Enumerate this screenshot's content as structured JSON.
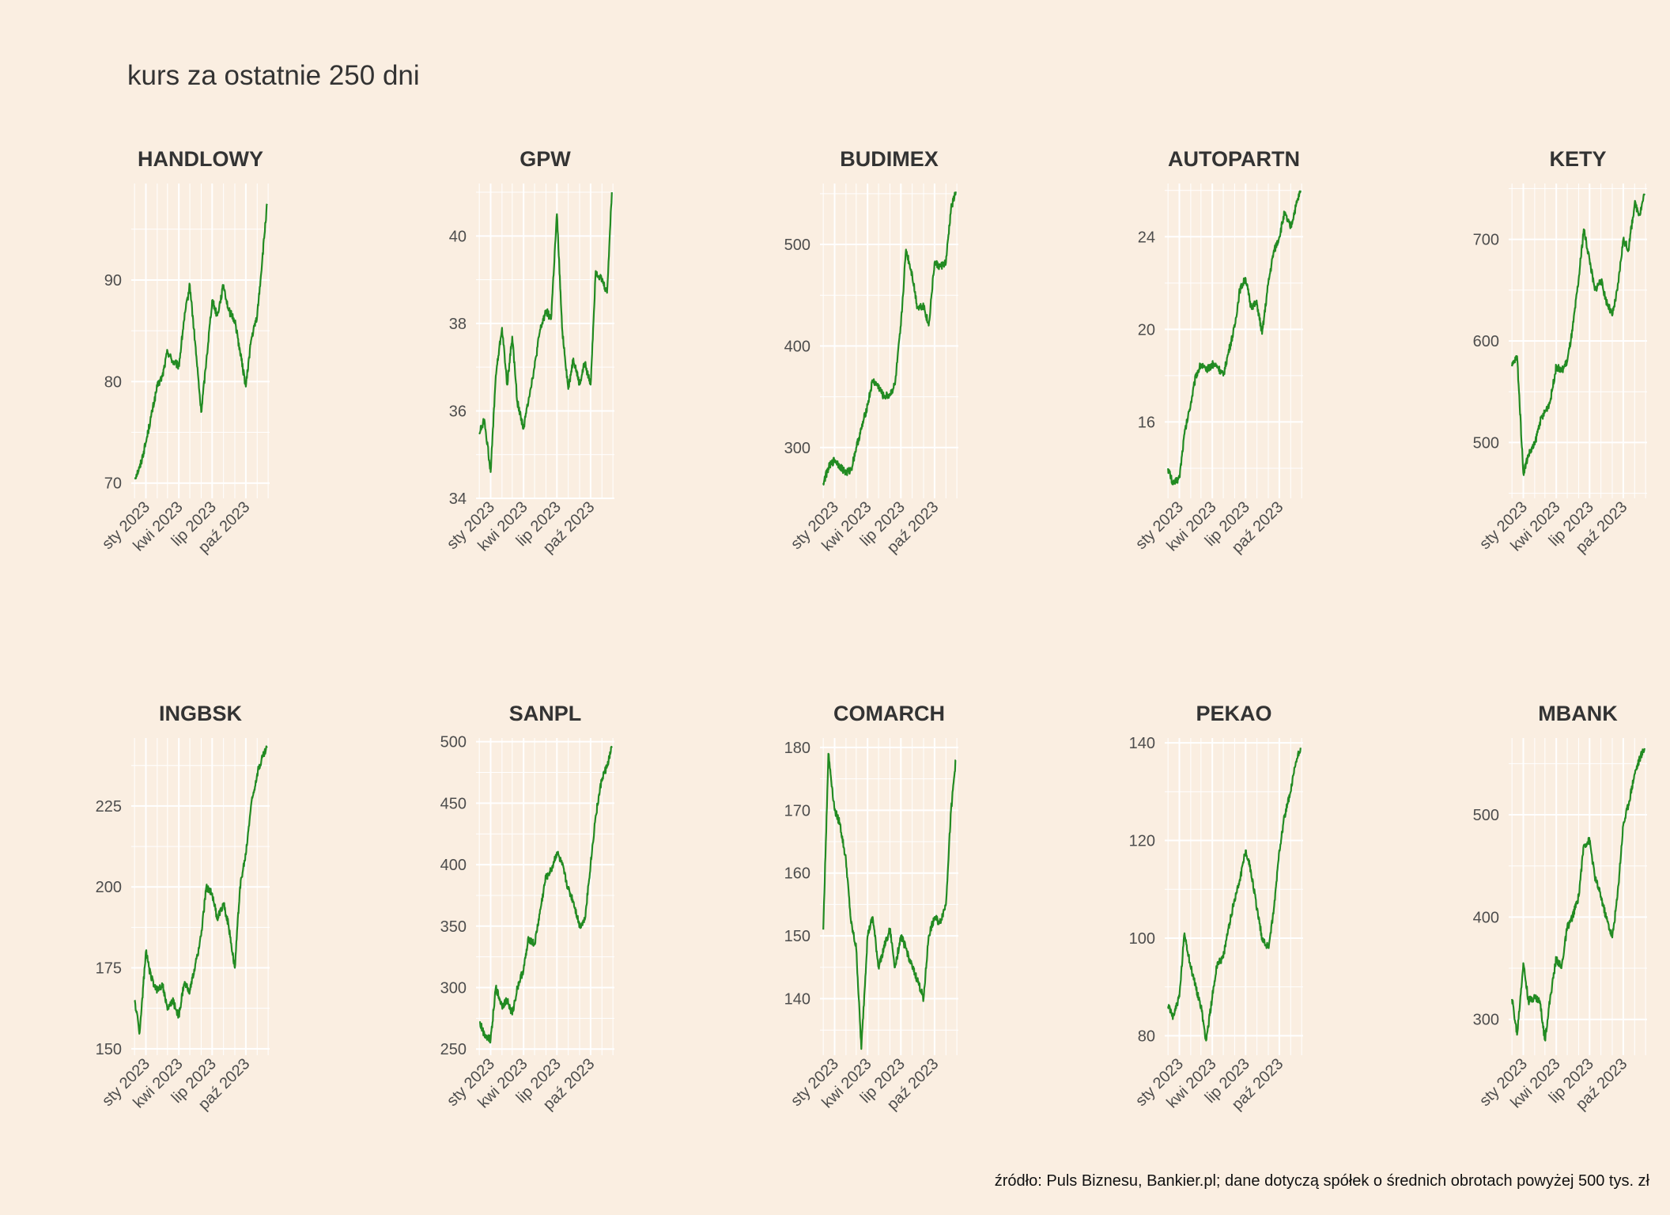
{
  "title": "kurs za ostatnie 250 dni",
  "caption": "źródło: Puls Biznesu, Bankier.pl; dane dotyczą spółek o średnich obrotach powyżej 500 tys. zł",
  "colors": {
    "background": "#faeee1",
    "grid": "#ffffff",
    "line": "#228b22",
    "text": "#333333"
  },
  "chart_data": [
    {
      "type": "line",
      "title": "HANDLOWY",
      "x_ticks": [
        "sty 2023",
        "kwi 2023",
        "lip 2023",
        "paź 2023"
      ],
      "yticks": [
        70,
        80,
        90
      ],
      "ylim": [
        68.5,
        99.5
      ],
      "x": [
        "2022-12-01",
        "2022-12-15",
        "2023-01-01",
        "2023-01-15",
        "2023-02-01",
        "2023-02-15",
        "2023-03-01",
        "2023-03-15",
        "2023-04-01",
        "2023-04-15",
        "2023-05-01",
        "2023-05-15",
        "2023-06-01",
        "2023-06-15",
        "2023-07-01",
        "2023-07-15",
        "2023-08-01",
        "2023-08-15",
        "2023-09-01",
        "2023-09-15",
        "2023-10-01",
        "2023-10-15",
        "2023-11-01",
        "2023-11-15",
        "2023-11-28"
      ],
      "values": [
        70.5,
        71.5,
        74,
        76.5,
        79.5,
        80.5,
        83,
        82,
        81.5,
        86,
        89.5,
        84,
        77,
        82,
        88,
        86.5,
        89.5,
        87,
        86,
        83,
        79.5,
        84,
        86.5,
        92,
        97.5
      ]
    },
    {
      "type": "line",
      "title": "GPW",
      "x_ticks": [
        "sty 2023",
        "kwi 2023",
        "lip 2023",
        "paź 2023"
      ],
      "yticks": [
        34,
        36,
        38,
        40
      ],
      "ylim": [
        34,
        41.2
      ],
      "x": [
        "2022-12-01",
        "2022-12-15",
        "2023-01-01",
        "2023-01-15",
        "2023-02-01",
        "2023-02-15",
        "2023-03-01",
        "2023-03-15",
        "2023-04-01",
        "2023-04-15",
        "2023-05-01",
        "2023-05-15",
        "2023-06-01",
        "2023-06-15",
        "2023-07-01",
        "2023-07-15",
        "2023-08-01",
        "2023-08-15",
        "2023-09-01",
        "2023-09-15",
        "2023-10-01",
        "2023-10-15",
        "2023-11-01",
        "2023-11-15",
        "2023-11-28"
      ],
      "values": [
        35.5,
        35.8,
        34.6,
        36.8,
        37.9,
        36.6,
        37.7,
        36.2,
        35.6,
        36.3,
        37,
        37.8,
        38.3,
        38.1,
        40.5,
        37.9,
        36.5,
        37.2,
        36.6,
        37.1,
        36.6,
        39.2,
        39,
        38.7,
        41
      ]
    },
    {
      "type": "line",
      "title": "BUDIMEX",
      "x_ticks": [
        "sty 2023",
        "kwi 2023",
        "lip 2023",
        "paź 2023"
      ],
      "yticks": [
        300,
        400,
        500
      ],
      "ylim": [
        250,
        560
      ],
      "x": [
        "2022-12-01",
        "2022-12-15",
        "2023-01-01",
        "2023-01-15",
        "2023-02-01",
        "2023-02-15",
        "2023-03-01",
        "2023-03-15",
        "2023-04-01",
        "2023-04-15",
        "2023-05-01",
        "2023-05-15",
        "2023-06-01",
        "2023-06-15",
        "2023-07-01",
        "2023-07-15",
        "2023-08-01",
        "2023-08-15",
        "2023-09-01",
        "2023-09-15",
        "2023-10-01",
        "2023-10-15",
        "2023-11-01",
        "2023-11-15",
        "2023-11-28"
      ],
      "values": [
        265,
        280,
        288,
        282,
        275,
        278,
        300,
        318,
        342,
        366,
        360,
        350,
        352,
        362,
        420,
        495,
        470,
        438,
        440,
        420,
        482,
        478,
        482,
        535,
        552
      ]
    },
    {
      "type": "line",
      "title": "AUTOPARTN",
      "x_ticks": [
        "sty 2023",
        "kwi 2023",
        "lip 2023",
        "paź 2023"
      ],
      "yticks": [
        16,
        20,
        24
      ],
      "ylim": [
        12.7,
        26.3
      ],
      "x": [
        "2022-12-01",
        "2022-12-15",
        "2023-01-01",
        "2023-01-15",
        "2023-02-01",
        "2023-02-15",
        "2023-03-01",
        "2023-03-15",
        "2023-04-01",
        "2023-04-15",
        "2023-05-01",
        "2023-05-15",
        "2023-06-01",
        "2023-06-15",
        "2023-07-01",
        "2023-07-15",
        "2023-08-01",
        "2023-08-15",
        "2023-09-01",
        "2023-09-15",
        "2023-10-01",
        "2023-10-15",
        "2023-11-01",
        "2023-11-15",
        "2023-11-28"
      ],
      "values": [
        14,
        13.3,
        13.6,
        15.5,
        16.8,
        18,
        18.5,
        18.2,
        18.5,
        18.4,
        18,
        19,
        20.1,
        21.7,
        22.2,
        21,
        21.1,
        19.8,
        22,
        23.3,
        24,
        25,
        24.4,
        25.3,
        26
      ]
    },
    {
      "type": "line",
      "title": "KETY",
      "x_ticks": [
        "sty 2023",
        "kwi 2023",
        "lip 2023",
        "paź 2023"
      ],
      "yticks": [
        500,
        600,
        700
      ],
      "ylim": [
        445,
        755
      ],
      "x": [
        "2022-12-01",
        "2022-12-15",
        "2023-01-01",
        "2023-01-15",
        "2023-02-01",
        "2023-02-15",
        "2023-03-01",
        "2023-03-15",
        "2023-04-01",
        "2023-04-15",
        "2023-05-01",
        "2023-05-15",
        "2023-06-01",
        "2023-06-15",
        "2023-07-01",
        "2023-07-15",
        "2023-08-01",
        "2023-08-15",
        "2023-09-01",
        "2023-09-15",
        "2023-10-01",
        "2023-10-15",
        "2023-11-01",
        "2023-11-15",
        "2023-11-28"
      ],
      "values": [
        575,
        585,
        470,
        488,
        498,
        520,
        530,
        540,
        575,
        570,
        580,
        610,
        660,
        710,
        680,
        650,
        660,
        640,
        625,
        650,
        700,
        690,
        735,
        725,
        745
      ]
    },
    {
      "type": "line",
      "title": "INGBSK",
      "x_ticks": [
        "sty 2023",
        "kwi 2023",
        "lip 2023",
        "paź 2023"
      ],
      "yticks": [
        150,
        175,
        200,
        225
      ],
      "ylim": [
        148,
        246
      ],
      "x": [
        "2022-12-01",
        "2022-12-15",
        "2023-01-01",
        "2023-01-15",
        "2023-02-01",
        "2023-02-15",
        "2023-03-01",
        "2023-03-15",
        "2023-04-01",
        "2023-04-15",
        "2023-05-01",
        "2023-05-15",
        "2023-06-01",
        "2023-06-15",
        "2023-07-01",
        "2023-07-15",
        "2023-08-01",
        "2023-08-15",
        "2023-09-01",
        "2023-09-15",
        "2023-10-01",
        "2023-10-15",
        "2023-11-01",
        "2023-11-15",
        "2023-11-28"
      ],
      "values": [
        165,
        155,
        180,
        172,
        168,
        170,
        162,
        165,
        160,
        170,
        168,
        175,
        185,
        200,
        198,
        190,
        195,
        188,
        175,
        200,
        210,
        225,
        235,
        240,
        243
      ]
    },
    {
      "type": "line",
      "title": "SANPL",
      "x_ticks": [
        "sty 2023",
        "kwi 2023",
        "lip 2023",
        "paź 2023"
      ],
      "yticks": [
        250,
        300,
        350,
        400,
        450,
        500
      ],
      "ylim": [
        245,
        503
      ],
      "x": [
        "2022-12-01",
        "2022-12-15",
        "2023-01-01",
        "2023-01-15",
        "2023-02-01",
        "2023-02-15",
        "2023-03-01",
        "2023-03-15",
        "2023-04-01",
        "2023-04-15",
        "2023-05-01",
        "2023-05-15",
        "2023-06-01",
        "2023-06-15",
        "2023-07-01",
        "2023-07-15",
        "2023-08-01",
        "2023-08-15",
        "2023-09-01",
        "2023-09-15",
        "2023-10-01",
        "2023-10-15",
        "2023-11-01",
        "2023-11-15",
        "2023-11-28"
      ],
      "values": [
        272,
        262,
        258,
        300,
        285,
        290,
        278,
        300,
        315,
        340,
        335,
        360,
        390,
        395,
        410,
        400,
        380,
        370,
        350,
        355,
        400,
        440,
        470,
        480,
        495
      ]
    },
    {
      "type": "line",
      "title": "COMARCH",
      "x_ticks": [
        "sty 2023",
        "kwi 2023",
        "lip 2023",
        "paź 2023"
      ],
      "yticks": [
        140,
        150,
        160,
        170,
        180
      ],
      "ylim": [
        131,
        181.5
      ],
      "x": [
        "2022-12-01",
        "2022-12-15",
        "2023-01-01",
        "2023-01-15",
        "2023-02-01",
        "2023-02-15",
        "2023-03-01",
        "2023-03-15",
        "2023-04-01",
        "2023-04-15",
        "2023-05-01",
        "2023-05-15",
        "2023-06-01",
        "2023-06-15",
        "2023-07-01",
        "2023-07-15",
        "2023-08-01",
        "2023-08-15",
        "2023-09-01",
        "2023-09-15",
        "2023-10-01",
        "2023-10-15",
        "2023-11-01",
        "2023-11-15",
        "2023-11-28"
      ],
      "values": [
        151,
        179,
        170,
        168,
        162,
        152,
        148,
        132,
        150,
        153,
        145,
        148,
        151,
        145,
        150,
        148,
        145,
        143,
        140,
        150,
        153,
        152,
        155,
        170,
        178
      ]
    },
    {
      "type": "line",
      "title": "PEKAO",
      "x_ticks": [
        "sty 2023",
        "kwi 2023",
        "lip 2023",
        "paź 2023"
      ],
      "yticks": [
        80,
        100,
        120,
        140
      ],
      "ylim": [
        76,
        141
      ],
      "x": [
        "2022-12-01",
        "2022-12-15",
        "2023-01-01",
        "2023-01-15",
        "2023-02-01",
        "2023-02-15",
        "2023-03-01",
        "2023-03-15",
        "2023-04-01",
        "2023-04-15",
        "2023-05-01",
        "2023-05-15",
        "2023-06-01",
        "2023-06-15",
        "2023-07-01",
        "2023-07-15",
        "2023-08-01",
        "2023-08-15",
        "2023-09-01",
        "2023-09-15",
        "2023-10-01",
        "2023-10-15",
        "2023-11-01",
        "2023-11-15",
        "2023-11-28"
      ],
      "values": [
        86,
        84,
        88,
        101,
        94,
        90,
        86,
        79,
        88,
        95,
        96,
        102,
        108,
        112,
        118,
        114,
        106,
        100,
        98,
        105,
        118,
        125,
        130,
        136,
        139
      ]
    },
    {
      "type": "line",
      "title": "MBANK",
      "x_ticks": [
        "sty 2023",
        "kwi 2023",
        "lip 2023",
        "paź 2023"
      ],
      "yticks": [
        300,
        400,
        500
      ],
      "ylim": [
        265,
        575
      ],
      "x": [
        "2022-12-01",
        "2022-12-15",
        "2023-01-01",
        "2023-01-15",
        "2023-02-01",
        "2023-02-15",
        "2023-03-01",
        "2023-03-15",
        "2023-04-01",
        "2023-04-15",
        "2023-05-01",
        "2023-05-15",
        "2023-06-01",
        "2023-06-15",
        "2023-07-01",
        "2023-07-15",
        "2023-08-01",
        "2023-08-15",
        "2023-09-01",
        "2023-09-15",
        "2023-10-01",
        "2023-10-15",
        "2023-11-01",
        "2023-11-15",
        "2023-11-28"
      ],
      "values": [
        320,
        285,
        355,
        318,
        322,
        318,
        280,
        320,
        360,
        350,
        390,
        400,
        420,
        470,
        475,
        440,
        420,
        400,
        380,
        420,
        490,
        510,
        540,
        555,
        565
      ]
    }
  ]
}
